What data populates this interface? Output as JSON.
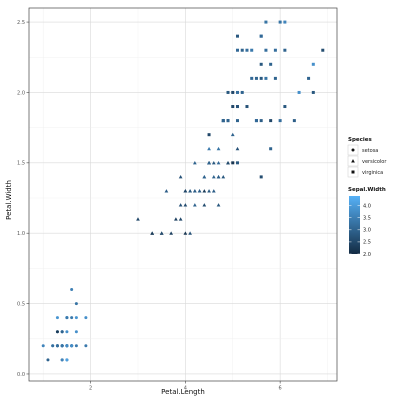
{
  "chart_data": {
    "type": "scatter",
    "title": "",
    "xlabel": "Petal.Length",
    "ylabel": "Petal.Width",
    "xlim": [
      0.7,
      7.2
    ],
    "ylim": [
      -0.05,
      2.6
    ],
    "xticks": [
      2,
      4,
      6
    ],
    "yticks": [
      0.0,
      0.5,
      1.0,
      1.5,
      2.0,
      2.5
    ],
    "yticklabels": [
      "0.0",
      "0.5",
      "1.0",
      "1.5",
      "2.0",
      "2.5"
    ],
    "grid": true,
    "shape_legend": {
      "title": "Species",
      "items": [
        {
          "label": "setosa",
          "shape": "circle"
        },
        {
          "label": "versicolor",
          "shape": "triangle"
        },
        {
          "label": "virginica",
          "shape": "square"
        }
      ]
    },
    "color_legend": {
      "title": "Sepal.Width",
      "ticks": [
        4.0,
        3.5,
        3.0,
        2.5,
        2.0
      ],
      "ticklabels": [
        "4.0",
        "3.5",
        "3.0",
        "2.5",
        "2.0"
      ],
      "range": [
        2.0,
        4.4
      ],
      "low_color": "#132B43",
      "high_color": "#56B1F7"
    },
    "series": [
      {
        "species": "setosa",
        "shape": "circle",
        "points": [
          [
            1.4,
            0.2,
            3.5
          ],
          [
            1.4,
            0.2,
            3.0
          ],
          [
            1.3,
            0.2,
            3.2
          ],
          [
            1.5,
            0.2,
            3.1
          ],
          [
            1.4,
            0.2,
            3.6
          ],
          [
            1.7,
            0.4,
            3.9
          ],
          [
            1.4,
            0.3,
            3.4
          ],
          [
            1.5,
            0.2,
            3.4
          ],
          [
            1.4,
            0.2,
            2.9
          ],
          [
            1.5,
            0.1,
            3.1
          ],
          [
            1.5,
            0.2,
            3.7
          ],
          [
            1.6,
            0.2,
            3.4
          ],
          [
            1.4,
            0.1,
            3.0
          ],
          [
            1.1,
            0.1,
            3.0
          ],
          [
            1.2,
            0.2,
            4.0
          ],
          [
            1.5,
            0.4,
            4.4
          ],
          [
            1.3,
            0.4,
            3.9
          ],
          [
            1.4,
            0.3,
            3.5
          ],
          [
            1.7,
            0.3,
            3.8
          ],
          [
            1.5,
            0.3,
            3.8
          ],
          [
            1.7,
            0.2,
            3.4
          ],
          [
            1.5,
            0.4,
            3.7
          ],
          [
            1.0,
            0.2,
            3.6
          ],
          [
            1.7,
            0.5,
            3.3
          ],
          [
            1.9,
            0.2,
            3.4
          ],
          [
            1.6,
            0.2,
            3.0
          ],
          [
            1.6,
            0.4,
            3.4
          ],
          [
            1.5,
            0.2,
            3.5
          ],
          [
            1.4,
            0.2,
            3.4
          ],
          [
            1.6,
            0.2,
            3.2
          ],
          [
            1.6,
            0.2,
            3.1
          ],
          [
            1.5,
            0.4,
            3.4
          ],
          [
            1.5,
            0.1,
            4.1
          ],
          [
            1.4,
            0.2,
            4.2
          ],
          [
            1.5,
            0.2,
            3.1
          ],
          [
            1.2,
            0.2,
            3.2
          ],
          [
            1.3,
            0.2,
            3.5
          ],
          [
            1.4,
            0.1,
            3.6
          ],
          [
            1.3,
            0.2,
            3.0
          ],
          [
            1.5,
            0.2,
            3.4
          ],
          [
            1.3,
            0.3,
            3.5
          ],
          [
            1.3,
            0.3,
            2.3
          ],
          [
            1.3,
            0.2,
            3.2
          ],
          [
            1.6,
            0.6,
            3.5
          ],
          [
            1.9,
            0.4,
            3.8
          ],
          [
            1.4,
            0.3,
            3.0
          ],
          [
            1.6,
            0.2,
            3.8
          ],
          [
            1.4,
            0.2,
            3.2
          ],
          [
            1.5,
            0.2,
            3.7
          ],
          [
            1.4,
            0.2,
            3.3
          ]
        ]
      },
      {
        "species": "versicolor",
        "shape": "triangle",
        "points": [
          [
            4.7,
            1.4,
            3.2
          ],
          [
            4.5,
            1.5,
            3.2
          ],
          [
            4.9,
            1.5,
            3.1
          ],
          [
            4.0,
            1.3,
            2.3
          ],
          [
            4.6,
            1.5,
            2.8
          ],
          [
            4.5,
            1.3,
            2.8
          ],
          [
            4.7,
            1.6,
            3.3
          ],
          [
            3.3,
            1.0,
            2.4
          ],
          [
            4.6,
            1.3,
            2.9
          ],
          [
            3.9,
            1.4,
            2.7
          ],
          [
            3.5,
            1.0,
            2.0
          ],
          [
            4.2,
            1.5,
            3.0
          ],
          [
            4.0,
            1.0,
            2.2
          ],
          [
            4.7,
            1.4,
            2.9
          ],
          [
            3.6,
            1.3,
            2.9
          ],
          [
            4.4,
            1.4,
            3.1
          ],
          [
            4.5,
            1.5,
            3.0
          ],
          [
            4.1,
            1.0,
            2.7
          ],
          [
            4.5,
            1.5,
            2.2
          ],
          [
            3.9,
            1.1,
            2.5
          ],
          [
            4.8,
            1.8,
            3.2
          ],
          [
            4.0,
            1.3,
            2.8
          ],
          [
            4.9,
            1.5,
            2.5
          ],
          [
            4.7,
            1.2,
            2.8
          ],
          [
            4.3,
            1.3,
            2.9
          ],
          [
            4.4,
            1.4,
            3.0
          ],
          [
            4.8,
            1.4,
            2.8
          ],
          [
            5.0,
            1.7,
            3.0
          ],
          [
            4.5,
            1.5,
            2.9
          ],
          [
            3.5,
            1.0,
            2.6
          ],
          [
            3.8,
            1.1,
            2.4
          ],
          [
            3.7,
            1.0,
            2.4
          ],
          [
            3.9,
            1.2,
            2.7
          ],
          [
            5.1,
            1.6,
            2.7
          ],
          [
            4.5,
            1.5,
            3.0
          ],
          [
            4.5,
            1.6,
            3.4
          ],
          [
            4.7,
            1.5,
            3.1
          ],
          [
            4.4,
            1.3,
            2.3
          ],
          [
            4.1,
            1.3,
            3.0
          ],
          [
            4.0,
            1.3,
            2.5
          ],
          [
            4.4,
            1.2,
            2.6
          ],
          [
            4.6,
            1.4,
            3.0
          ],
          [
            4.0,
            1.2,
            2.6
          ],
          [
            3.3,
            1.0,
            2.3
          ],
          [
            4.2,
            1.3,
            2.7
          ],
          [
            4.2,
            1.2,
            3.0
          ],
          [
            4.2,
            1.3,
            2.9
          ],
          [
            4.3,
            1.3,
            2.9
          ],
          [
            3.0,
            1.1,
            2.5
          ],
          [
            4.1,
            1.3,
            2.8
          ]
        ]
      },
      {
        "species": "virginica",
        "shape": "square",
        "points": [
          [
            6.0,
            2.5,
            3.3
          ],
          [
            5.1,
            1.9,
            2.7
          ],
          [
            5.9,
            2.1,
            3.0
          ],
          [
            5.6,
            1.8,
            2.9
          ],
          [
            5.8,
            2.2,
            3.0
          ],
          [
            6.6,
            2.1,
            3.0
          ],
          [
            4.5,
            1.7,
            2.5
          ],
          [
            6.3,
            1.8,
            2.9
          ],
          [
            5.8,
            1.8,
            2.5
          ],
          [
            6.1,
            2.5,
            3.6
          ],
          [
            5.1,
            2.0,
            3.2
          ],
          [
            5.3,
            1.9,
            2.7
          ],
          [
            5.5,
            2.1,
            3.0
          ],
          [
            5.0,
            2.0,
            2.5
          ],
          [
            5.1,
            2.4,
            2.8
          ],
          [
            5.3,
            2.3,
            3.2
          ],
          [
            5.5,
            1.8,
            3.0
          ],
          [
            6.7,
            2.2,
            3.8
          ],
          [
            6.9,
            2.3,
            2.6
          ],
          [
            5.0,
            1.5,
            2.2
          ],
          [
            5.7,
            2.3,
            3.2
          ],
          [
            4.9,
            2.0,
            2.8
          ],
          [
            6.7,
            2.0,
            2.8
          ],
          [
            4.9,
            1.8,
            2.7
          ],
          [
            5.7,
            2.1,
            3.3
          ],
          [
            6.0,
            1.8,
            3.2
          ],
          [
            4.8,
            1.8,
            2.8
          ],
          [
            4.9,
            1.8,
            3.0
          ],
          [
            5.6,
            2.1,
            2.8
          ],
          [
            5.8,
            1.6,
            3.0
          ],
          [
            6.1,
            1.9,
            2.8
          ],
          [
            6.4,
            2.0,
            3.8
          ],
          [
            5.6,
            2.2,
            2.8
          ],
          [
            5.1,
            1.5,
            2.8
          ],
          [
            5.6,
            1.4,
            2.6
          ],
          [
            6.1,
            2.3,
            3.0
          ],
          [
            5.6,
            2.4,
            3.4
          ],
          [
            5.5,
            1.8,
            3.1
          ],
          [
            4.8,
            1.8,
            3.0
          ],
          [
            5.4,
            2.1,
            3.1
          ],
          [
            5.6,
            2.4,
            3.1
          ],
          [
            5.1,
            2.3,
            3.1
          ],
          [
            5.1,
            1.9,
            2.7
          ],
          [
            5.9,
            2.3,
            3.2
          ],
          [
            5.7,
            2.5,
            3.3
          ],
          [
            5.2,
            2.3,
            3.0
          ],
          [
            5.0,
            1.9,
            2.5
          ],
          [
            5.2,
            2.0,
            3.0
          ],
          [
            5.4,
            2.3,
            3.4
          ],
          [
            5.1,
            1.8,
            3.0
          ]
        ]
      }
    ]
  }
}
